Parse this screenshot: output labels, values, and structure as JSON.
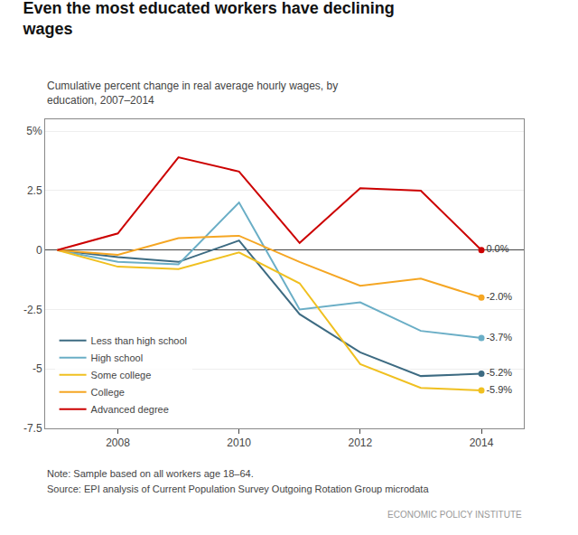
{
  "chart_data": {
    "type": "line",
    "title": "Even the most educated workers have declining\nwages",
    "subtitle": "Cumulative percent change in real average hourly wages, by\neducation, 2007–2014",
    "annotations": [
      "Note: Sample based on all workers age 18–64.",
      "Source: EPI analysis of Current Population Survey Outgoing Rotation Group microdata",
      "ECONOMIC POLICY INSTITUTE"
    ],
    "x": [
      2007,
      2008,
      2009,
      2010,
      2011,
      2012,
      2013,
      2014
    ],
    "series": [
      {
        "name": "Less than high school",
        "color": "#3d6b82",
        "values": [
          0.0,
          -0.3,
          -0.5,
          0.4,
          -2.7,
          -4.3,
          -5.3,
          -5.2
        ],
        "value_labels": [
          null,
          null,
          null,
          null,
          null,
          null,
          null,
          "-5.2%"
        ]
      },
      {
        "name": "High school",
        "color": "#6aaec6",
        "values": [
          0.0,
          -0.5,
          -0.6,
          2.0,
          -2.5,
          -2.2,
          -3.4,
          -3.7
        ],
        "value_labels": [
          null,
          null,
          null,
          null,
          null,
          null,
          null,
          "-3.7%"
        ]
      },
      {
        "name": "Some college",
        "color": "#f0c020",
        "values": [
          0.0,
          -0.7,
          -0.8,
          -0.1,
          -1.4,
          -4.8,
          -5.8,
          -5.9
        ],
        "value_labels": [
          null,
          null,
          null,
          null,
          null,
          null,
          null,
          "-5.9%"
        ]
      },
      {
        "name": "College",
        "color": "#f5a623",
        "values": [
          0.0,
          -0.2,
          0.5,
          0.6,
          -0.5,
          -1.5,
          -1.2,
          -2.0
        ],
        "value_labels": [
          null,
          null,
          null,
          null,
          null,
          null,
          null,
          "-2.0%"
        ]
      },
      {
        "name": "Advanced degree",
        "color": "#cc0000",
        "values": [
          0.0,
          0.7,
          3.9,
          3.3,
          0.3,
          2.6,
          2.5,
          0.0
        ],
        "value_labels": [
          null,
          null,
          null,
          null,
          null,
          null,
          null,
          "0.0%"
        ]
      }
    ],
    "xlim": [
      2006.8,
      2014.7
    ],
    "xticks": [
      2008,
      2010,
      2012,
      2014
    ],
    "ylim": [
      -7.5,
      5.5
    ],
    "yticks": [
      -7.5,
      -5,
      -2.5,
      0,
      2.5,
      {
        "value": 5,
        "label": "5%"
      }
    ],
    "grid": true,
    "legend": "lower left",
    "data_labels": true
  }
}
